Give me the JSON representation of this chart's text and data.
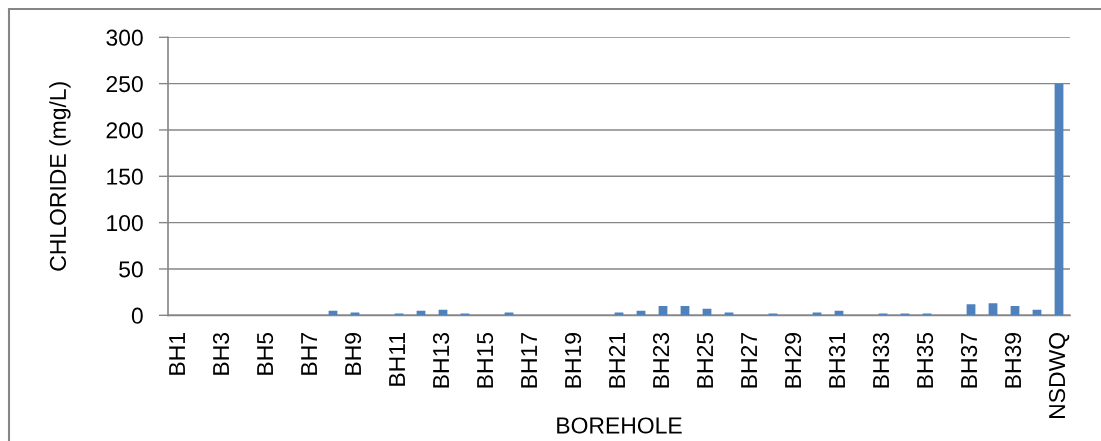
{
  "chart_data": {
    "type": "bar",
    "categories": [
      "BH1",
      null,
      "BH3",
      null,
      "BH5",
      null,
      "BH7",
      null,
      "BH9",
      null,
      "BH11",
      null,
      "BH13",
      null,
      "BH15",
      null,
      "BH17",
      null,
      "BH19",
      null,
      "BH21",
      null,
      "BH23",
      null,
      "BH25",
      null,
      "BH27",
      null,
      "BH29",
      null,
      "BH31",
      null,
      "BH33",
      null,
      "BH35",
      null,
      "BH37",
      null,
      "BH39",
      null,
      "NSDWQ"
    ],
    "values": [
      0,
      0,
      0,
      0,
      0,
      0,
      0,
      5,
      3,
      0,
      2,
      5,
      6,
      2,
      0,
      3,
      0,
      0,
      0,
      0,
      3,
      5,
      10,
      10,
      7,
      3,
      0,
      2,
      0,
      3,
      5,
      0,
      2,
      2,
      2,
      0,
      12,
      13,
      10,
      6,
      250
    ],
    "color": "#4f81bd",
    "xlabel": "BOREHOLE",
    "ylabel": "CHLORIDE (mg/L)",
    "ylim": [
      0,
      300
    ],
    "yticks": [
      0,
      50,
      100,
      150,
      200,
      250,
      300
    ],
    "grid": "y"
  }
}
